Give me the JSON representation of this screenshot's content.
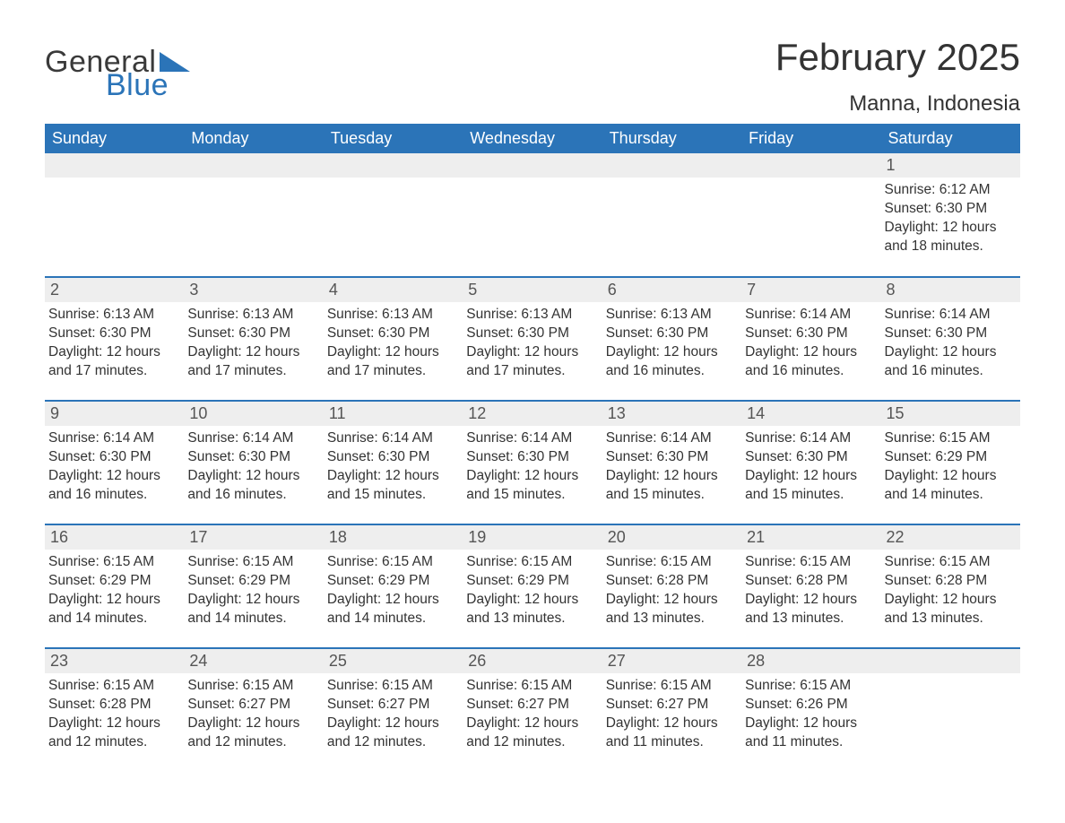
{
  "brand": {
    "part1": "General",
    "part2": "Blue",
    "brand_color": "#2b74b8",
    "text_color": "#3a3a3a"
  },
  "title": "February 2025",
  "location": "Manna, Indonesia",
  "colors": {
    "header_bg": "#2b74b8",
    "header_text": "#ffffff",
    "row_border": "#2b74b8",
    "daynum_bg": "#eeeeee",
    "daynum_text": "#555555",
    "body_text": "#333333",
    "page_bg": "#ffffff"
  },
  "layout": {
    "columns": 7,
    "rows": 5,
    "col_width_pct": 14.2857
  },
  "typography": {
    "title_fontsize": 42,
    "location_fontsize": 24,
    "dayheader_fontsize": 18,
    "daynum_fontsize": 18,
    "body_fontsize": 15.5
  },
  "day_headers": [
    "Sunday",
    "Monday",
    "Tuesday",
    "Wednesday",
    "Thursday",
    "Friday",
    "Saturday"
  ],
  "weeks": [
    [
      {
        "n": "",
        "sunrise": "",
        "sunset": "",
        "daylight": ""
      },
      {
        "n": "",
        "sunrise": "",
        "sunset": "",
        "daylight": ""
      },
      {
        "n": "",
        "sunrise": "",
        "sunset": "",
        "daylight": ""
      },
      {
        "n": "",
        "sunrise": "",
        "sunset": "",
        "daylight": ""
      },
      {
        "n": "",
        "sunrise": "",
        "sunset": "",
        "daylight": ""
      },
      {
        "n": "",
        "sunrise": "",
        "sunset": "",
        "daylight": ""
      },
      {
        "n": "1",
        "sunrise": "Sunrise: 6:12 AM",
        "sunset": "Sunset: 6:30 PM",
        "daylight": "Daylight: 12 hours and 18 minutes."
      }
    ],
    [
      {
        "n": "2",
        "sunrise": "Sunrise: 6:13 AM",
        "sunset": "Sunset: 6:30 PM",
        "daylight": "Daylight: 12 hours and 17 minutes."
      },
      {
        "n": "3",
        "sunrise": "Sunrise: 6:13 AM",
        "sunset": "Sunset: 6:30 PM",
        "daylight": "Daylight: 12 hours and 17 minutes."
      },
      {
        "n": "4",
        "sunrise": "Sunrise: 6:13 AM",
        "sunset": "Sunset: 6:30 PM",
        "daylight": "Daylight: 12 hours and 17 minutes."
      },
      {
        "n": "5",
        "sunrise": "Sunrise: 6:13 AM",
        "sunset": "Sunset: 6:30 PM",
        "daylight": "Daylight: 12 hours and 17 minutes."
      },
      {
        "n": "6",
        "sunrise": "Sunrise: 6:13 AM",
        "sunset": "Sunset: 6:30 PM",
        "daylight": "Daylight: 12 hours and 16 minutes."
      },
      {
        "n": "7",
        "sunrise": "Sunrise: 6:14 AM",
        "sunset": "Sunset: 6:30 PM",
        "daylight": "Daylight: 12 hours and 16 minutes."
      },
      {
        "n": "8",
        "sunrise": "Sunrise: 6:14 AM",
        "sunset": "Sunset: 6:30 PM",
        "daylight": "Daylight: 12 hours and 16 minutes."
      }
    ],
    [
      {
        "n": "9",
        "sunrise": "Sunrise: 6:14 AM",
        "sunset": "Sunset: 6:30 PM",
        "daylight": "Daylight: 12 hours and 16 minutes."
      },
      {
        "n": "10",
        "sunrise": "Sunrise: 6:14 AM",
        "sunset": "Sunset: 6:30 PM",
        "daylight": "Daylight: 12 hours and 16 minutes."
      },
      {
        "n": "11",
        "sunrise": "Sunrise: 6:14 AM",
        "sunset": "Sunset: 6:30 PM",
        "daylight": "Daylight: 12 hours and 15 minutes."
      },
      {
        "n": "12",
        "sunrise": "Sunrise: 6:14 AM",
        "sunset": "Sunset: 6:30 PM",
        "daylight": "Daylight: 12 hours and 15 minutes."
      },
      {
        "n": "13",
        "sunrise": "Sunrise: 6:14 AM",
        "sunset": "Sunset: 6:30 PM",
        "daylight": "Daylight: 12 hours and 15 minutes."
      },
      {
        "n": "14",
        "sunrise": "Sunrise: 6:14 AM",
        "sunset": "Sunset: 6:30 PM",
        "daylight": "Daylight: 12 hours and 15 minutes."
      },
      {
        "n": "15",
        "sunrise": "Sunrise: 6:15 AM",
        "sunset": "Sunset: 6:29 PM",
        "daylight": "Daylight: 12 hours and 14 minutes."
      }
    ],
    [
      {
        "n": "16",
        "sunrise": "Sunrise: 6:15 AM",
        "sunset": "Sunset: 6:29 PM",
        "daylight": "Daylight: 12 hours and 14 minutes."
      },
      {
        "n": "17",
        "sunrise": "Sunrise: 6:15 AM",
        "sunset": "Sunset: 6:29 PM",
        "daylight": "Daylight: 12 hours and 14 minutes."
      },
      {
        "n": "18",
        "sunrise": "Sunrise: 6:15 AM",
        "sunset": "Sunset: 6:29 PM",
        "daylight": "Daylight: 12 hours and 14 minutes."
      },
      {
        "n": "19",
        "sunrise": "Sunrise: 6:15 AM",
        "sunset": "Sunset: 6:29 PM",
        "daylight": "Daylight: 12 hours and 13 minutes."
      },
      {
        "n": "20",
        "sunrise": "Sunrise: 6:15 AM",
        "sunset": "Sunset: 6:28 PM",
        "daylight": "Daylight: 12 hours and 13 minutes."
      },
      {
        "n": "21",
        "sunrise": "Sunrise: 6:15 AM",
        "sunset": "Sunset: 6:28 PM",
        "daylight": "Daylight: 12 hours and 13 minutes."
      },
      {
        "n": "22",
        "sunrise": "Sunrise: 6:15 AM",
        "sunset": "Sunset: 6:28 PM",
        "daylight": "Daylight: 12 hours and 13 minutes."
      }
    ],
    [
      {
        "n": "23",
        "sunrise": "Sunrise: 6:15 AM",
        "sunset": "Sunset: 6:28 PM",
        "daylight": "Daylight: 12 hours and 12 minutes."
      },
      {
        "n": "24",
        "sunrise": "Sunrise: 6:15 AM",
        "sunset": "Sunset: 6:27 PM",
        "daylight": "Daylight: 12 hours and 12 minutes."
      },
      {
        "n": "25",
        "sunrise": "Sunrise: 6:15 AM",
        "sunset": "Sunset: 6:27 PM",
        "daylight": "Daylight: 12 hours and 12 minutes."
      },
      {
        "n": "26",
        "sunrise": "Sunrise: 6:15 AM",
        "sunset": "Sunset: 6:27 PM",
        "daylight": "Daylight: 12 hours and 12 minutes."
      },
      {
        "n": "27",
        "sunrise": "Sunrise: 6:15 AM",
        "sunset": "Sunset: 6:27 PM",
        "daylight": "Daylight: 12 hours and 11 minutes."
      },
      {
        "n": "28",
        "sunrise": "Sunrise: 6:15 AM",
        "sunset": "Sunset: 6:26 PM",
        "daylight": "Daylight: 12 hours and 11 minutes."
      },
      {
        "n": "",
        "sunrise": "",
        "sunset": "",
        "daylight": ""
      }
    ]
  ]
}
